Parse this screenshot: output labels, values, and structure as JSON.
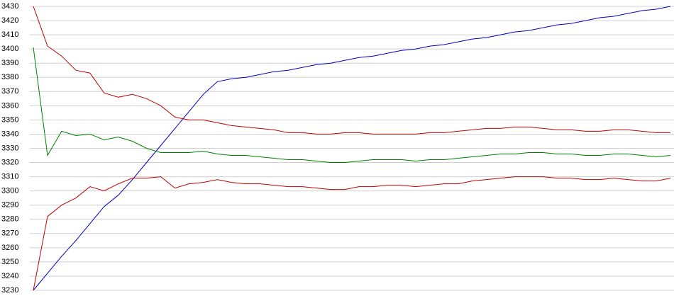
{
  "chart_data": {
    "type": "line",
    "ylim": [
      3230,
      3430
    ],
    "yticks": [
      3230,
      3240,
      3250,
      3260,
      3270,
      3280,
      3290,
      3300,
      3310,
      3320,
      3330,
      3340,
      3350,
      3360,
      3370,
      3380,
      3390,
      3400,
      3410,
      3420,
      3430
    ],
    "grid": true,
    "series": [
      {
        "color": "#0000c0",
        "values": [
          3230,
          3242,
          3254,
          3265,
          3277,
          3289,
          3297,
          3308,
          3320,
          3332,
          3344,
          3356,
          3368,
          3377,
          3379,
          3380,
          3382,
          3384,
          3385,
          3387,
          3389,
          3390,
          3392,
          3394,
          3395,
          3397,
          3399,
          3400,
          3402,
          3403,
          3405,
          3407,
          3408,
          3410,
          3412,
          3413,
          3415,
          3417,
          3418,
          3420,
          3422,
          3423,
          3425,
          3427,
          3428,
          3430
        ]
      },
      {
        "color": "#c00000",
        "values": [
          3430,
          3402,
          3395,
          3385,
          3383,
          3369,
          3366,
          3368,
          3365,
          3360,
          3352,
          3350,
          3350,
          3348,
          3346,
          3345,
          3344,
          3343,
          3341,
          3341,
          3340,
          3340,
          3341,
          3341,
          3340,
          3340,
          3340,
          3340,
          3341,
          3341,
          3342,
          3343,
          3344,
          3344,
          3345,
          3345,
          3344,
          3343,
          3343,
          3342,
          3342,
          3343,
          3343,
          3342,
          3341,
          3341
        ]
      },
      {
        "color": "#008000",
        "values": [
          3401,
          3325,
          3342,
          3339,
          3340,
          3336,
          3338,
          3335,
          3330,
          3327,
          3327,
          3327,
          3328,
          3326,
          3325,
          3325,
          3324,
          3323,
          3322,
          3322,
          3321,
          3320,
          3320,
          3321,
          3322,
          3322,
          3322,
          3321,
          3322,
          3322,
          3323,
          3324,
          3325,
          3326,
          3326,
          3327,
          3327,
          3326,
          3326,
          3325,
          3325,
          3326,
          3326,
          3325,
          3324,
          3325
        ]
      },
      {
        "color": "#c00000",
        "values": [
          3230,
          3282,
          3290,
          3295,
          3303,
          3300,
          3305,
          3309,
          3309,
          3310,
          3302,
          3305,
          3306,
          3308,
          3306,
          3305,
          3305,
          3304,
          3303,
          3303,
          3302,
          3301,
          3301,
          3303,
          3303,
          3304,
          3304,
          3303,
          3304,
          3305,
          3305,
          3307,
          3308,
          3309,
          3310,
          3310,
          3310,
          3309,
          3309,
          3308,
          3308,
          3309,
          3308,
          3307,
          3307,
          3309
        ]
      }
    ]
  }
}
